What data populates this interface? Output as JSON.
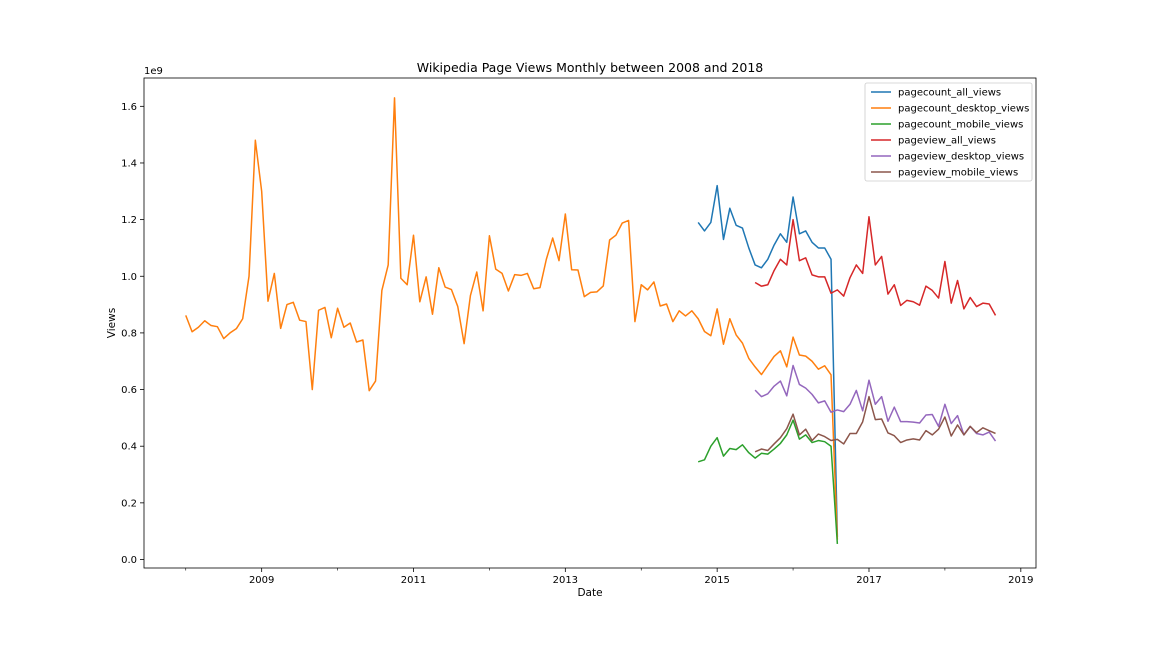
{
  "chart_data": {
    "type": "line",
    "title": "Wikipedia Page Views Monthly between 2008 and 2018",
    "xlabel": "Date",
    "ylabel": "Views",
    "y_multiplier_label": "1e9",
    "xlim": [
      2007.45,
      2019.2
    ],
    "ylim": [
      -0.03,
      1.7
    ],
    "x_ticks": [
      2009,
      2011,
      2013,
      2015,
      2017,
      2019
    ],
    "x_tick_labels": [
      "2009",
      "2011",
      "2013",
      "2015",
      "2017",
      "2019"
    ],
    "x_minor_ticks": [
      2008,
      2010,
      2012,
      2014,
      2016,
      2018
    ],
    "y_ticks": [
      0.0,
      0.2,
      0.4,
      0.6,
      0.8,
      1.0,
      1.2,
      1.4,
      1.6
    ],
    "y_tick_labels": [
      "0.0",
      "0.2",
      "0.4",
      "0.6",
      "0.8",
      "1.0",
      "1.2",
      "1.4",
      "1.6"
    ],
    "legend_position": "top-right",
    "series": [
      {
        "name": "pagecount_all_views",
        "color": "#1f77b4",
        "start": 2014.75,
        "values": [
          1.19,
          1.16,
          1.19,
          1.32,
          1.13,
          1.24,
          1.18,
          1.17,
          1.1,
          1.04,
          1.03,
          1.06,
          1.11,
          1.15,
          1.12,
          1.28,
          1.15,
          1.16,
          1.12,
          1.1,
          1.1,
          1.06,
          0.08
        ]
      },
      {
        "name": "pagecount_desktop_views",
        "color": "#ff7f0e",
        "start": 2008.0,
        "values": [
          0.862,
          0.804,
          0.82,
          0.843,
          0.826,
          0.822,
          0.78,
          0.8,
          0.815,
          0.85,
          1.0,
          1.48,
          1.3,
          0.912,
          1.01,
          0.816,
          0.9,
          0.908,
          0.845,
          0.84,
          0.6,
          0.88,
          0.89,
          0.783,
          0.887,
          0.82,
          0.835,
          0.768,
          0.775,
          0.596,
          0.63,
          0.95,
          1.04,
          1.63,
          0.993,
          0.97,
          1.145,
          0.91,
          0.998,
          0.866,
          1.03,
          0.962,
          0.953,
          0.893,
          0.762,
          0.932,
          1.015,
          0.878,
          1.143,
          1.025,
          1.01,
          0.948,
          1.006,
          1.003,
          1.01,
          0.956,
          0.96,
          1.06,
          1.135,
          1.055,
          1.22,
          1.023,
          1.022,
          0.928,
          0.943,
          0.945,
          0.966,
          1.128,
          1.145,
          1.188,
          1.197,
          0.84,
          0.97,
          0.952,
          0.98,
          0.895,
          0.902,
          0.84,
          0.878,
          0.86,
          0.878,
          0.85,
          0.805,
          0.79,
          0.885,
          0.76,
          0.85,
          0.793,
          0.764,
          0.71,
          0.68,
          0.653,
          0.685,
          0.717,
          0.737,
          0.68,
          0.785,
          0.722,
          0.718,
          0.7,
          0.672,
          0.684,
          0.652,
          0.07
        ]
      },
      {
        "name": "pagecount_mobile_views",
        "color": "#2ca02c",
        "start": 2014.75,
        "values": [
          0.345,
          0.352,
          0.4,
          0.43,
          0.365,
          0.392,
          0.388,
          0.405,
          0.377,
          0.358,
          0.375,
          0.372,
          0.39,
          0.41,
          0.44,
          0.492,
          0.425,
          0.44,
          0.413,
          0.42,
          0.416,
          0.4,
          0.055
        ]
      },
      {
        "name": "pageview_all_views",
        "color": "#d62728",
        "start": 2015.5,
        "values": [
          0.978,
          0.965,
          0.97,
          1.02,
          1.06,
          1.04,
          1.2,
          1.055,
          1.065,
          1.005,
          0.998,
          0.998,
          0.94,
          0.952,
          0.93,
          0.995,
          1.04,
          1.01,
          1.21,
          1.04,
          1.07,
          0.937,
          0.97,
          0.897,
          0.915,
          0.91,
          0.898,
          0.965,
          0.95,
          0.923,
          1.052,
          0.905,
          0.985,
          0.885,
          0.925,
          0.893,
          0.905,
          0.902,
          0.862
        ]
      },
      {
        "name": "pageview_desktop_views",
        "color": "#9467bd",
        "start": 2015.5,
        "values": [
          0.598,
          0.575,
          0.585,
          0.612,
          0.63,
          0.578,
          0.685,
          0.618,
          0.605,
          0.583,
          0.553,
          0.56,
          0.52,
          0.528,
          0.522,
          0.548,
          0.597,
          0.525,
          0.633,
          0.548,
          0.575,
          0.488,
          0.538,
          0.487,
          0.487,
          0.485,
          0.482,
          0.51,
          0.512,
          0.47,
          0.548,
          0.48,
          0.508,
          0.44,
          0.47,
          0.445,
          0.44,
          0.45,
          0.418
        ]
      },
      {
        "name": "pageview_mobile_views",
        "color": "#8c564b",
        "start": 2015.5,
        "values": [
          0.38,
          0.39,
          0.385,
          0.408,
          0.43,
          0.462,
          0.513,
          0.44,
          0.46,
          0.42,
          0.443,
          0.434,
          0.42,
          0.424,
          0.408,
          0.445,
          0.445,
          0.486,
          0.575,
          0.494,
          0.496,
          0.447,
          0.437,
          0.413,
          0.422,
          0.426,
          0.422,
          0.455,
          0.44,
          0.46,
          0.503,
          0.436,
          0.475,
          0.44,
          0.47,
          0.448,
          0.465,
          0.455,
          0.445
        ]
      }
    ]
  }
}
